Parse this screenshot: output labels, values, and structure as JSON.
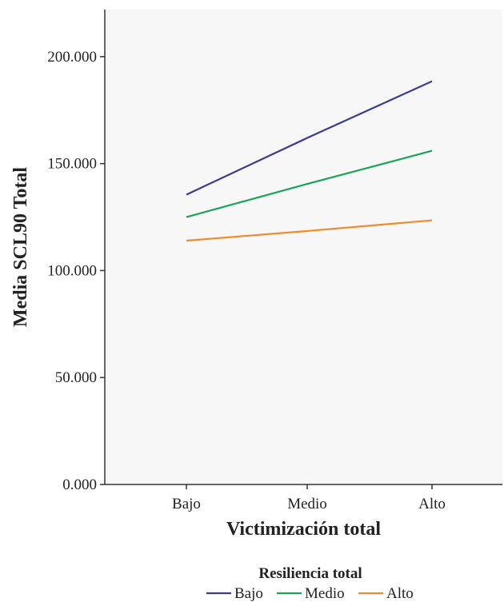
{
  "chart_data": {
    "type": "line",
    "categories": [
      "Bajo",
      "Medio",
      "Alto"
    ],
    "xlabel": "Victimización total",
    "ylabel": "Media SCL90 Total",
    "ylim": [
      0,
      222
    ],
    "yticks": [
      0,
      50,
      100,
      150,
      200
    ],
    "ytick_labels": [
      "0.000",
      "50.000",
      "100.000",
      "150.000",
      "200.000"
    ],
    "grid": false,
    "legend": {
      "title": "Resiliencia total",
      "position": "bottom-center"
    },
    "series": [
      {
        "name": "Bajo",
        "color": "#3b3b8f",
        "values": [
          135.5,
          162,
          188.5
        ]
      },
      {
        "name": "Medio",
        "color": "#1aa35a",
        "values": [
          125,
          140.5,
          156
        ]
      },
      {
        "name": "Alto",
        "color": "#f08a2a",
        "values": [
          114,
          118.5,
          123.5
        ]
      }
    ]
  }
}
